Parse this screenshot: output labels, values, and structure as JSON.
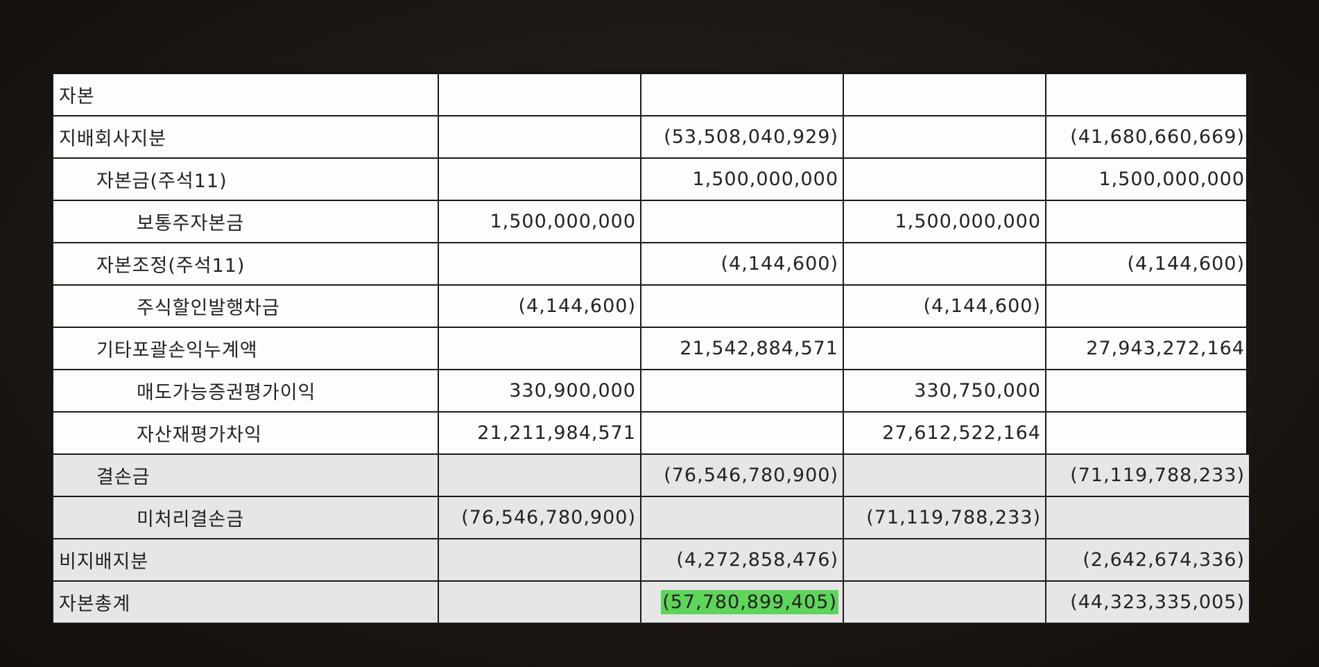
{
  "table": {
    "rows": [
      {
        "label": "자본",
        "level": 0,
        "shaded": false,
        "c1": "",
        "c2": "",
        "c3": "",
        "c4": ""
      },
      {
        "label": "지배회사지분",
        "level": 0,
        "shaded": false,
        "c1": "",
        "c2": "(53,508,040,929)",
        "c3": "",
        "c4": "(41,680,660,669)"
      },
      {
        "label": "자본금(주석11)",
        "level": 1,
        "shaded": false,
        "c1": "",
        "c2": "1,500,000,000",
        "c3": "",
        "c4": "1,500,000,000"
      },
      {
        "label": "보통주자본금",
        "level": 2,
        "shaded": false,
        "c1": "1,500,000,000",
        "c2": "",
        "c3": "1,500,000,000",
        "c4": ""
      },
      {
        "label": "자본조정(주석11)",
        "level": 1,
        "shaded": false,
        "c1": "",
        "c2": "(4,144,600)",
        "c3": "",
        "c4": "(4,144,600)"
      },
      {
        "label": "주식할인발행차금",
        "level": 2,
        "shaded": false,
        "c1": "(4,144,600)",
        "c2": "",
        "c3": "(4,144,600)",
        "c4": ""
      },
      {
        "label": "기타포괄손익누계액",
        "level": 1,
        "shaded": false,
        "c1": "",
        "c2": "21,542,884,571",
        "c3": "",
        "c4": "27,943,272,164"
      },
      {
        "label": "매도가능증권평가이익",
        "level": 2,
        "shaded": false,
        "c1": "330,900,000",
        "c2": "",
        "c3": "330,750,000",
        "c4": ""
      },
      {
        "label": "자산재평가차익",
        "level": 2,
        "shaded": false,
        "c1": "21,211,984,571",
        "c2": "",
        "c3": "27,612,522,164",
        "c4": ""
      },
      {
        "label": "결손금",
        "level": 1,
        "shaded": true,
        "c1": "",
        "c2": "(76,546,780,900)",
        "c3": "",
        "c4": "(71,119,788,233)"
      },
      {
        "label": "미처리결손금",
        "level": 2,
        "shaded": true,
        "c1": "(76,546,780,900)",
        "c2": "",
        "c3": "(71,119,788,233)",
        "c4": ""
      },
      {
        "label": "비지배지분",
        "level": 0,
        "shaded": true,
        "c1": "",
        "c2": "(4,272,858,476)",
        "c3": "",
        "c4": "(2,642,674,336)"
      },
      {
        "label": "자본총계",
        "level": 0,
        "shaded": true,
        "c1": "",
        "c2": "(57,780,899,405)",
        "c3": "",
        "c4": "(44,323,335,005)"
      }
    ],
    "highlight": {
      "row": 12,
      "col": "c2",
      "color": "#5fd45a"
    }
  }
}
